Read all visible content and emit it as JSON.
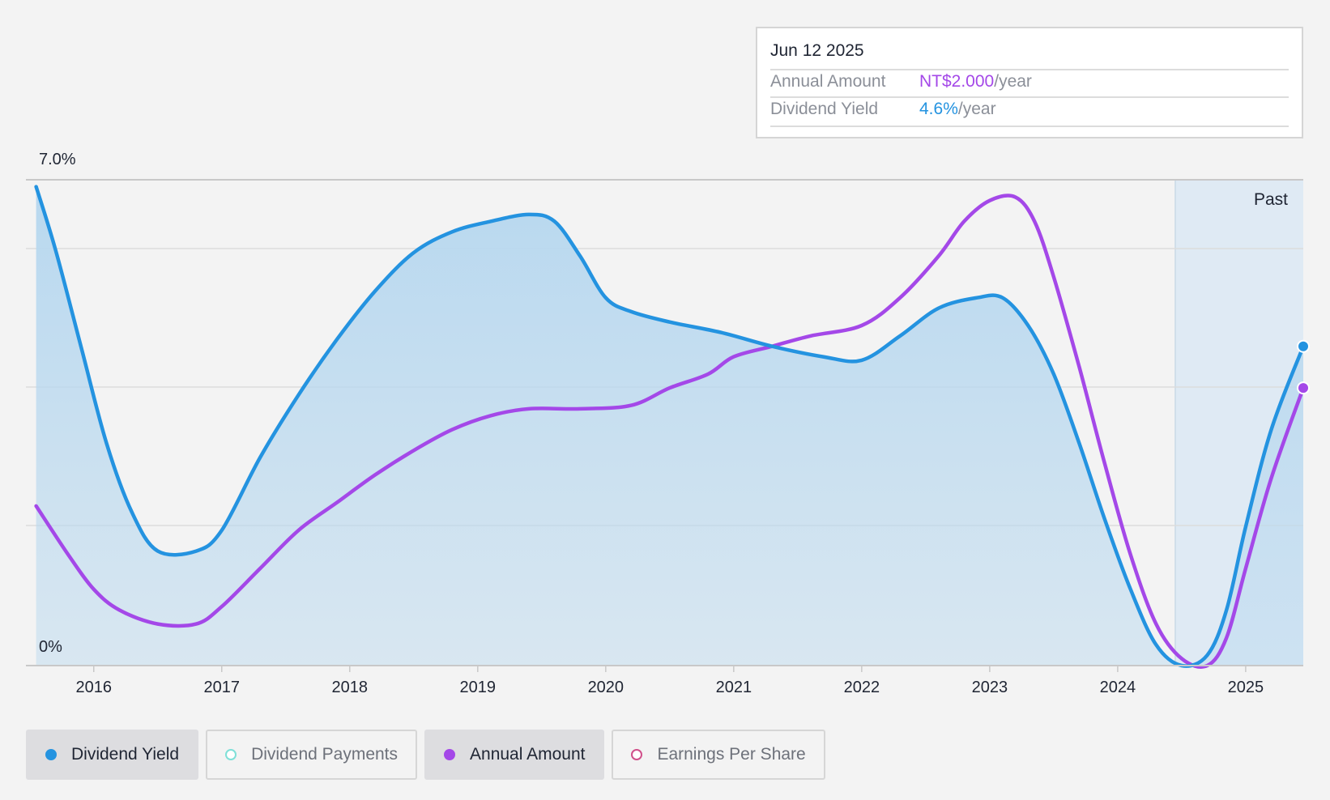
{
  "tooltip": {
    "date": "Jun 12 2025",
    "rows": [
      {
        "label": "Annual Amount",
        "value": "NT$2.000",
        "unit": "/year"
      },
      {
        "label": "Dividend Yield",
        "value": "4.6%",
        "unit": "/year"
      }
    ]
  },
  "colors": {
    "dividend_yield": "#2493e0",
    "annual_amount": "#a448e8",
    "dividend_payments": "#7fe0d8",
    "earnings_per_share": "#d0508a",
    "area_fill": "#b8d8ef",
    "past_band": "#d6e6f3"
  },
  "legend": [
    {
      "label": "Dividend Yield",
      "active": true,
      "color": "#2493e0",
      "filled": true,
      "icon": "filled-dot-icon"
    },
    {
      "label": "Dividend Payments",
      "active": false,
      "color": "#7fe0d8",
      "filled": false,
      "icon": "hollow-dot-icon"
    },
    {
      "label": "Annual Amount",
      "active": true,
      "color": "#a448e8",
      "filled": true,
      "icon": "filled-dot-icon"
    },
    {
      "label": "Earnings Per Share",
      "active": false,
      "color": "#d0508a",
      "filled": false,
      "icon": "hollow-dot-icon"
    }
  ],
  "chart_data": {
    "type": "line",
    "y_top_label": "7.0%",
    "y_bottom_label": "0%",
    "ylim": [
      0,
      7.0
    ],
    "grid": true,
    "x_ticks": [
      "2016",
      "2017",
      "2018",
      "2019",
      "2020",
      "2021",
      "2022",
      "2023",
      "2024",
      "2025"
    ],
    "xlim": [
      2015.47,
      2025.45
    ],
    "past_region": {
      "label": "Past",
      "start": 2024.45,
      "end": 2025.45
    },
    "series": [
      {
        "name": "Dividend Yield",
        "area": true,
        "x": [
          2015.55,
          2015.7,
          2015.9,
          2016.1,
          2016.3,
          2016.5,
          2016.8,
          2017.0,
          2017.3,
          2017.6,
          2017.9,
          2018.2,
          2018.5,
          2018.8,
          2019.1,
          2019.4,
          2019.6,
          2019.8,
          2020.0,
          2020.2,
          2020.5,
          2020.9,
          2021.3,
          2021.7,
          2022.0,
          2022.3,
          2022.6,
          2022.9,
          2023.1,
          2023.3,
          2023.5,
          2023.7,
          2023.9,
          2024.1,
          2024.3,
          2024.5,
          2024.7,
          2024.85,
          2025.0,
          2025.2,
          2025.45
        ],
        "values": [
          6.9,
          6.0,
          4.6,
          3.2,
          2.2,
          1.65,
          1.65,
          1.95,
          3.0,
          3.9,
          4.7,
          5.4,
          5.95,
          6.25,
          6.4,
          6.5,
          6.4,
          5.9,
          5.3,
          5.1,
          4.95,
          4.8,
          4.6,
          4.45,
          4.4,
          4.75,
          5.15,
          5.3,
          5.3,
          4.9,
          4.2,
          3.2,
          2.1,
          1.1,
          0.3,
          0.0,
          0.15,
          0.8,
          2.0,
          3.4,
          4.6
        ]
      },
      {
        "name": "Annual Amount",
        "area": false,
        "x": [
          2015.55,
          2015.8,
          2016.0,
          2016.2,
          2016.5,
          2016.8,
          2017.0,
          2017.3,
          2017.6,
          2017.9,
          2018.2,
          2018.5,
          2018.8,
          2019.1,
          2019.4,
          2019.8,
          2020.2,
          2020.5,
          2020.8,
          2021.0,
          2021.3,
          2021.6,
          2022.0,
          2022.3,
          2022.6,
          2022.8,
          2023.0,
          2023.2,
          2023.35,
          2023.5,
          2023.7,
          2023.9,
          2024.1,
          2024.3,
          2024.5,
          2024.7,
          2024.85,
          2025.0,
          2025.2,
          2025.45
        ],
        "values": [
          2.3,
          1.6,
          1.1,
          0.8,
          0.6,
          0.6,
          0.85,
          1.4,
          1.95,
          2.35,
          2.75,
          3.1,
          3.4,
          3.6,
          3.7,
          3.7,
          3.75,
          4.0,
          4.2,
          4.45,
          4.6,
          4.75,
          4.9,
          5.3,
          5.9,
          6.4,
          6.7,
          6.75,
          6.4,
          5.6,
          4.3,
          2.9,
          1.6,
          0.6,
          0.1,
          0.0,
          0.4,
          1.4,
          2.7,
          4.0
        ]
      }
    ]
  }
}
